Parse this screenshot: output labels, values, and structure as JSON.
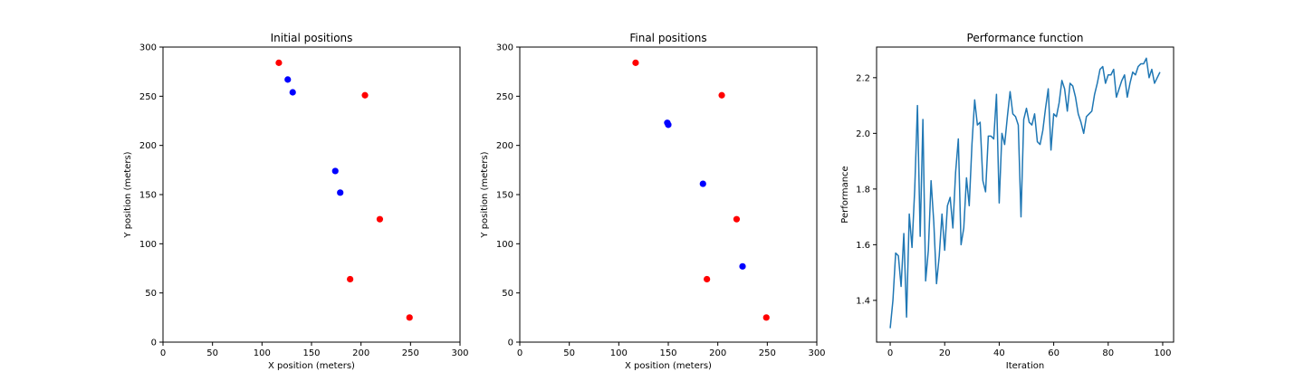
{
  "chart_data": [
    {
      "type": "scatter",
      "title": "Initial positions",
      "xlabel": "X position (meters)",
      "ylabel": "Y position (meters)",
      "xlim": [
        0,
        300
      ],
      "ylim": [
        0,
        300
      ],
      "xticks": [
        0,
        50,
        100,
        150,
        200,
        250,
        300
      ],
      "yticks": [
        0,
        50,
        100,
        150,
        200,
        250,
        300
      ],
      "grid": false,
      "series": [
        {
          "color": "#ff0000",
          "points": [
            [
              117,
              284
            ],
            [
              204,
              251
            ],
            [
              219,
              125
            ],
            [
              189,
              64
            ],
            [
              249,
              25
            ]
          ]
        },
        {
          "color": "#0000ff",
          "points": [
            [
              126,
              267
            ],
            [
              131,
              254
            ],
            [
              174,
              174
            ],
            [
              179,
              152
            ]
          ]
        }
      ]
    },
    {
      "type": "scatter",
      "title": "Final positions",
      "xlabel": "X position (meters)",
      "ylabel": "Y position (meters)",
      "xlim": [
        0,
        300
      ],
      "ylim": [
        0,
        300
      ],
      "xticks": [
        0,
        50,
        100,
        150,
        200,
        250,
        300
      ],
      "yticks": [
        0,
        50,
        100,
        150,
        200,
        250,
        300
      ],
      "grid": false,
      "series": [
        {
          "color": "#ff0000",
          "points": [
            [
              117,
              284
            ],
            [
              204,
              251
            ],
            [
              219,
              125
            ],
            [
              189,
              64
            ],
            [
              249,
              25
            ]
          ]
        },
        {
          "color": "#0000ff",
          "points": [
            [
              149,
              223
            ],
            [
              150,
              221
            ],
            [
              185,
              161
            ],
            [
              225,
              77
            ]
          ]
        }
      ]
    },
    {
      "type": "line",
      "title": "Performance function",
      "xlabel": "Iteration",
      "ylabel": "Performance",
      "xlim": [
        -5,
        104
      ],
      "ylim": [
        1.25,
        2.31
      ],
      "xticks": [
        0,
        20,
        40,
        60,
        80,
        100
      ],
      "yticks": [
        1.4,
        1.6,
        1.8,
        2.0,
        2.2
      ],
      "ytick_labels": [
        "1.4",
        "1.6",
        "1.8",
        "2.0",
        "2.2"
      ],
      "grid": false,
      "series": [
        {
          "color": "#1f77b4",
          "x": [
            0,
            1,
            2,
            3,
            4,
            5,
            6,
            7,
            8,
            9,
            10,
            11,
            12,
            13,
            14,
            15,
            16,
            17,
            18,
            19,
            20,
            21,
            22,
            23,
            24,
            25,
            26,
            27,
            28,
            29,
            30,
            31,
            32,
            33,
            34,
            35,
            36,
            37,
            38,
            39,
            40,
            41,
            42,
            43,
            44,
            45,
            46,
            47,
            48,
            49,
            50,
            51,
            52,
            53,
            54,
            55,
            56,
            57,
            58,
            59,
            60,
            61,
            62,
            63,
            64,
            65,
            66,
            67,
            68,
            69,
            70,
            71,
            72,
            73,
            74,
            75,
            76,
            77,
            78,
            79,
            80,
            81,
            82,
            83,
            84,
            85,
            86,
            87,
            88,
            89,
            90,
            91,
            92,
            93,
            94,
            95,
            96,
            97,
            98,
            99
          ],
          "values": [
            1.3,
            1.4,
            1.57,
            1.56,
            1.45,
            1.64,
            1.34,
            1.71,
            1.59,
            1.8,
            2.1,
            1.63,
            2.05,
            1.47,
            1.58,
            1.83,
            1.68,
            1.46,
            1.56,
            1.71,
            1.58,
            1.74,
            1.77,
            1.66,
            1.86,
            1.98,
            1.6,
            1.66,
            1.84,
            1.74,
            1.96,
            2.12,
            2.03,
            2.04,
            1.83,
            1.79,
            1.99,
            1.99,
            1.98,
            2.14,
            1.75,
            2.0,
            1.96,
            2.06,
            2.15,
            2.07,
            2.06,
            2.03,
            1.7,
            2.05,
            2.09,
            2.04,
            2.03,
            2.07,
            1.97,
            1.96,
            2.01,
            2.09,
            2.16,
            1.94,
            2.07,
            2.06,
            2.11,
            2.19,
            2.16,
            2.08,
            2.18,
            2.17,
            2.13,
            2.07,
            2.04,
            2.0,
            2.06,
            2.07,
            2.08,
            2.14,
            2.18,
            2.23,
            2.24,
            2.18,
            2.21,
            2.21,
            2.23,
            2.13,
            2.16,
            2.19,
            2.21,
            2.13,
            2.18,
            2.22,
            2.21,
            2.24,
            2.25,
            2.25,
            2.27,
            2.2,
            2.23,
            2.18,
            2.2,
            2.22
          ]
        }
      ]
    }
  ]
}
